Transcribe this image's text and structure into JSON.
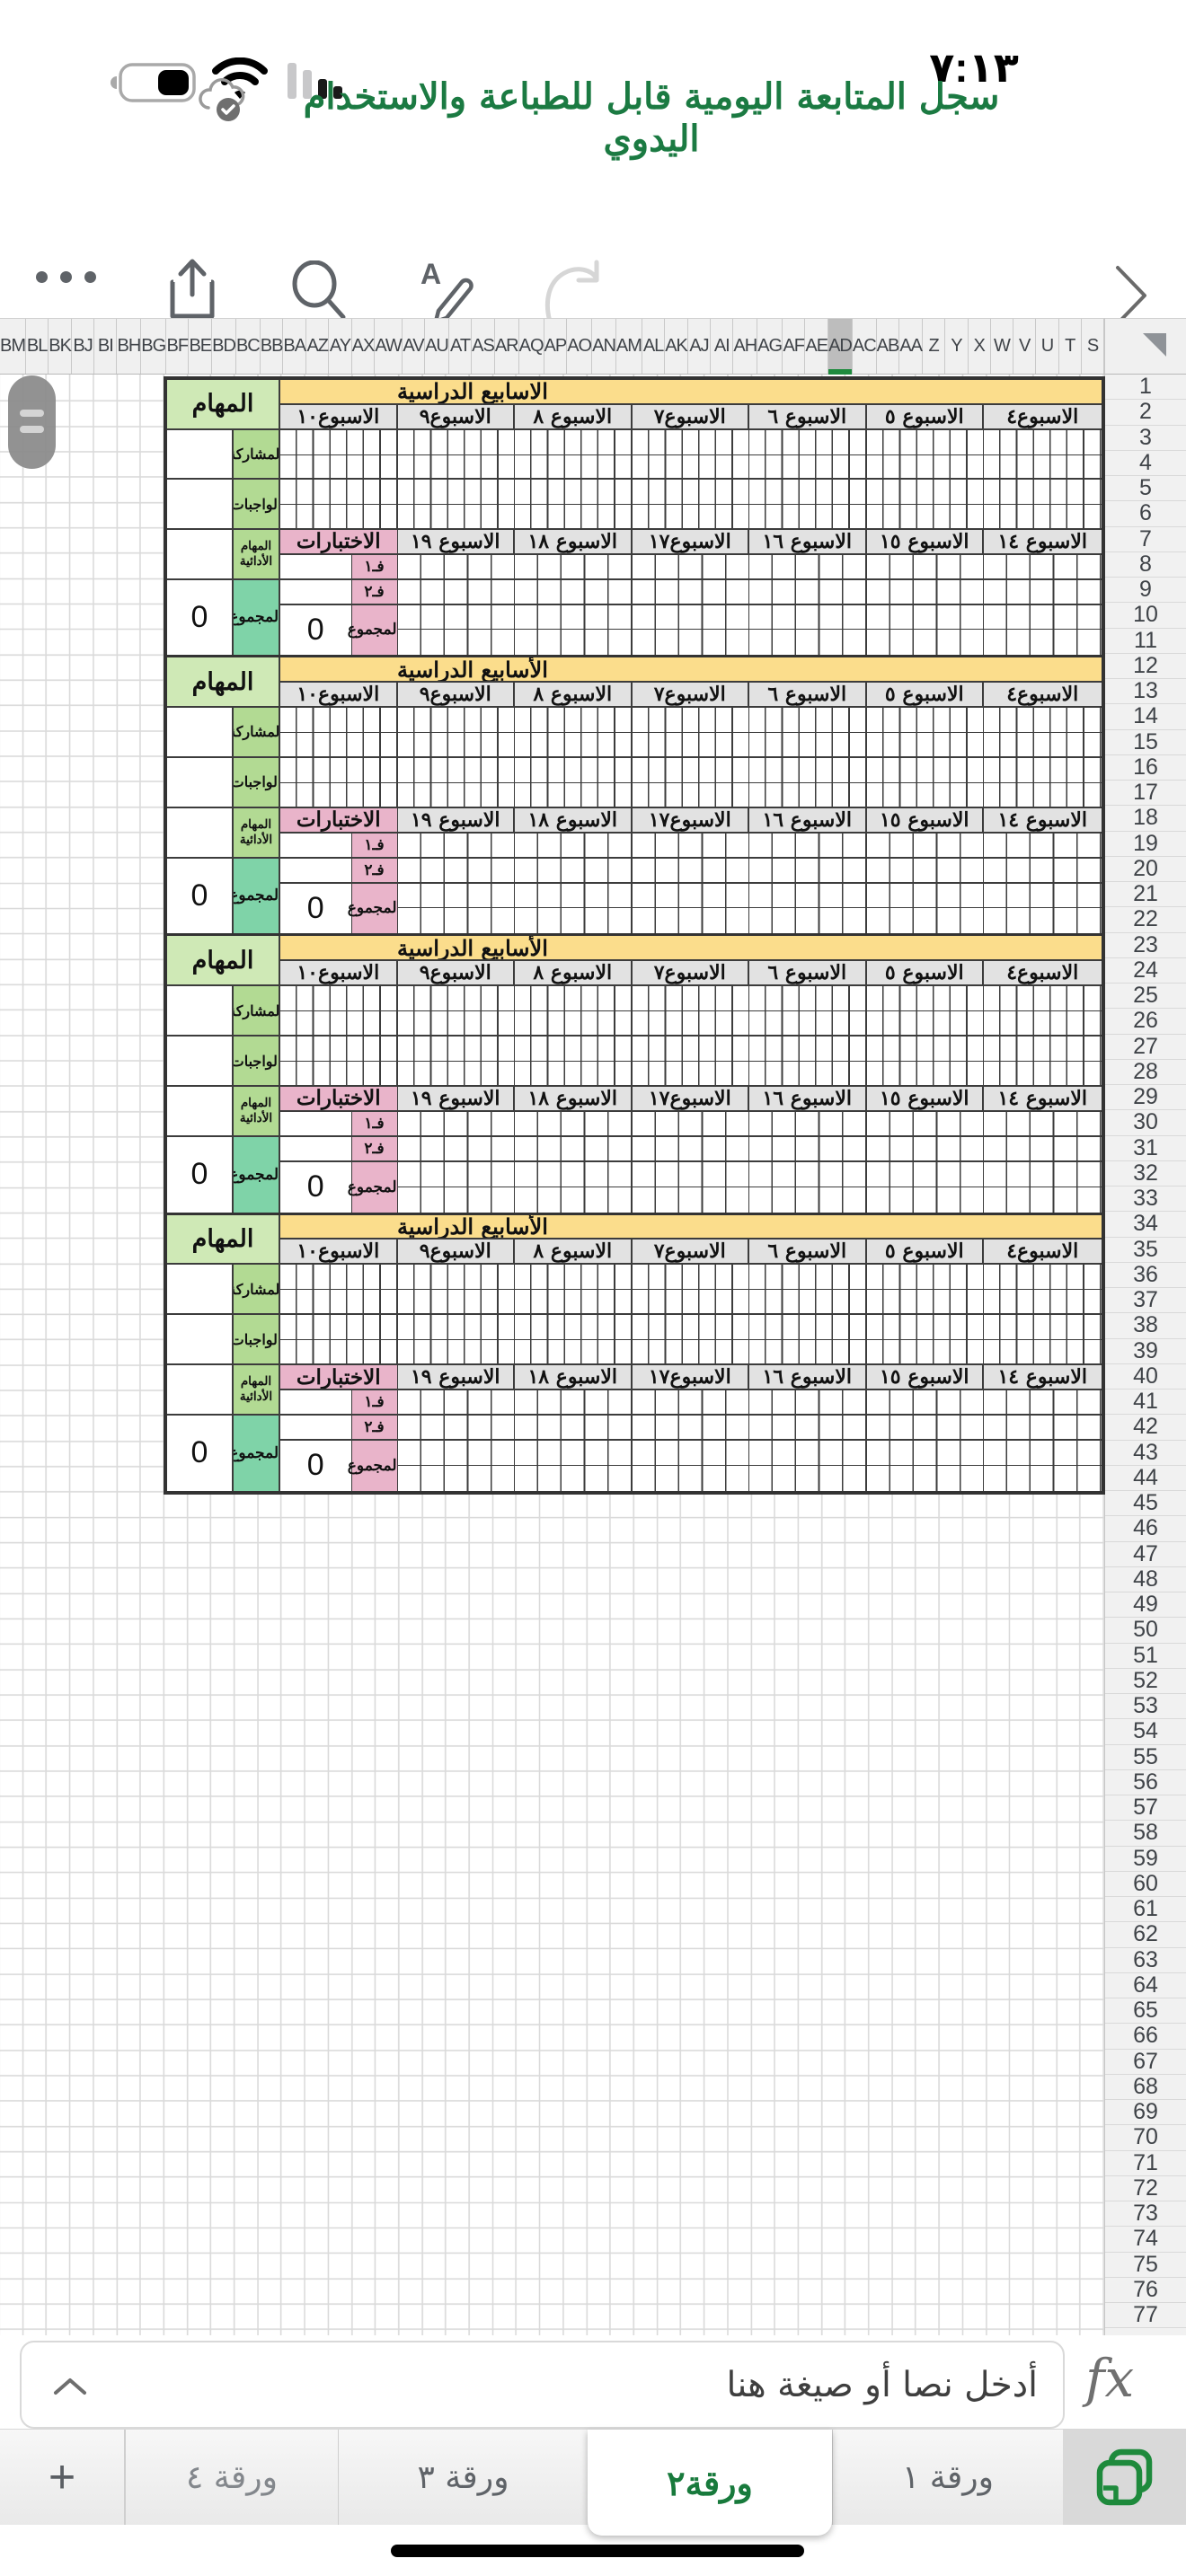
{
  "status_bar": {
    "time": "٧:١٣"
  },
  "header": {
    "title": "سجل المتابعة اليومية قابل للطباعة والاستخدام اليدوي"
  },
  "toolbar": {
    "icons": [
      "more",
      "share",
      "search",
      "format",
      "redo",
      "back"
    ]
  },
  "spreadsheet": {
    "column_letters": [
      "BM",
      "BL",
      "BK",
      "BJ",
      "BI",
      "BH",
      "BG",
      "BF",
      "BE",
      "BD",
      "BC",
      "BB",
      "BA",
      "AZ",
      "AY",
      "AX",
      "AW",
      "AV",
      "AU",
      "AT",
      "AS",
      "AR",
      "AQ",
      "AP",
      "AO",
      "AN",
      "AM",
      "AL",
      "AK",
      "AJ",
      "AI",
      "AH",
      "AG",
      "AF",
      "AE",
      "AD",
      "AC",
      "AB",
      "AA",
      "Z",
      "Y",
      "X",
      "W",
      "V",
      "U",
      "T",
      "S"
    ],
    "highlighted_column": "AD",
    "row_count": 77,
    "table": {
      "blocks": [
        {
          "banner": "الاسابيع الدراسية",
          "tasks_total": "0",
          "tests_total": "0"
        },
        {
          "banner": "الأسابيع الدراسية",
          "tasks_total": "0",
          "tests_total": "0"
        },
        {
          "banner": "الأسابيع الدراسية",
          "tasks_total": "0",
          "tests_total": "0"
        },
        {
          "banner": "الأسابيع الدراسية",
          "tasks_total": "0",
          "tests_total": "0"
        }
      ],
      "weeks_top": [
        "الاسبوع٤",
        "الاسبوع ٥",
        "الاسبوع ٦",
        "الاسبوع٧",
        "الاسبوع ٨",
        "الاسبوع٩",
        "الاسبوع١٠"
      ],
      "weeks_bottom": [
        "الاسبوع ١٤",
        "الاسبوع ١٥",
        "الاسبوع ١٦",
        "الاسبوع١٧",
        "الاسبوع ١٨",
        "الاسبوع ١٩"
      ],
      "labels": {
        "tasks": "المهام",
        "participation": "المشاركة",
        "homework": "الواجبات",
        "performance_tasks": "المهام الأدائية",
        "total": "المجموع",
        "tests": "الاختبارات",
        "test1": "فـ١",
        "test2": "فـ٢",
        "tests_total": "المجموع"
      }
    }
  },
  "formula_bar": {
    "placeholder": "أدخل نصا أو صيغة هنا",
    "fx_label": "fx"
  },
  "sheet_tabs": {
    "add_label": "+",
    "tabs": [
      {
        "label": "ورقة ١",
        "active": false
      },
      {
        "label": "ورقة٢",
        "active": true
      },
      {
        "label": "ورقة ٣",
        "active": false
      },
      {
        "label": "ورقة ٤",
        "active": false
      }
    ]
  },
  "colors": {
    "accent_green": "#187a3c",
    "banner_yellow": "#fbdd8c",
    "header_gray": "#e2e2e2",
    "pink": "#e9b4ca",
    "green_light": "#cfe9b6",
    "green_mid": "#b2da93",
    "teal": "#7fd3a8"
  }
}
